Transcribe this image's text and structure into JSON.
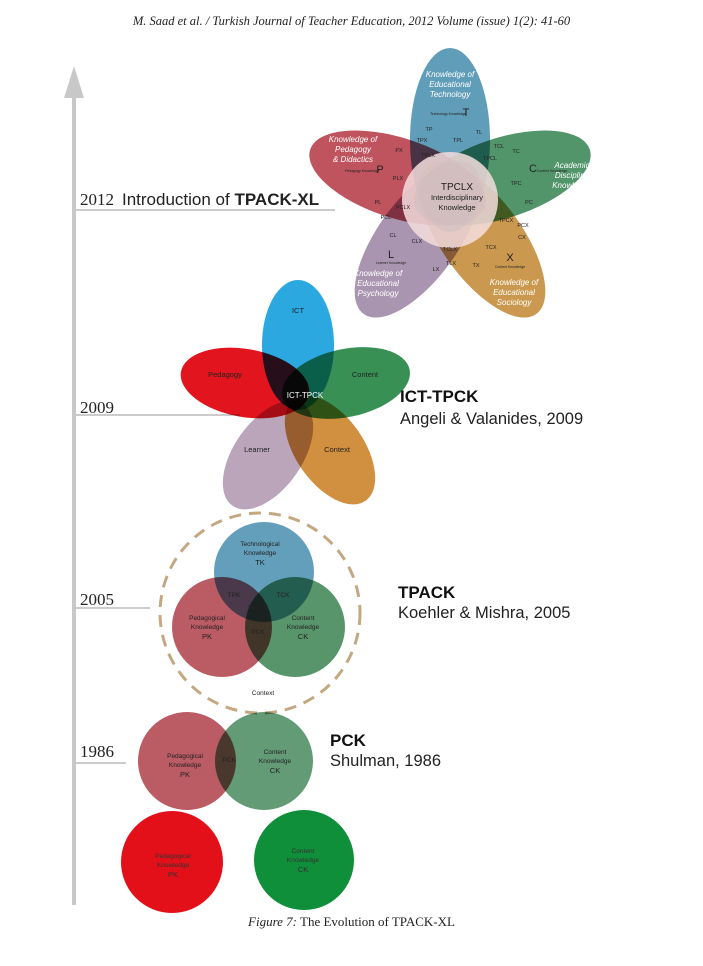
{
  "header": "M. Saad et al.  / Turkish Journal of Teacher Education, 2012 Volume (issue) 1(2): 41-60",
  "caption": {
    "label": "Figure 7:",
    "text": " The Evolution of TPACK-XL"
  },
  "timeline": {
    "y2012": {
      "year": "2012",
      "title_prefix": "Introduction of ",
      "title_bold": "TPACK-XL"
    },
    "y2009": {
      "year": "2009",
      "title": "ICT-TPCK",
      "citation": "Angeli & Valanides, 2009"
    },
    "y2005": {
      "year": "2005",
      "title": "TPACK",
      "citation": "Koehler & Mishra, 2005"
    },
    "y1986": {
      "year": "1986",
      "title": "PCK",
      "citation": "Shulman, 1986"
    }
  },
  "tpackxl": {
    "petals": {
      "t": [
        "Knowledge of",
        "Educational",
        "Technology"
      ],
      "p": [
        "Knowledge of",
        "Pedagogy",
        "& Didactics"
      ],
      "c": [
        "Academic",
        "Discipline",
        "Knowledge"
      ],
      "l": [
        "Knowledge of",
        "Educational",
        "Psychology"
      ],
      "x": [
        "Knowledge of",
        "Educational",
        "Sociology"
      ]
    },
    "letters": {
      "t": "T",
      "t_sub": "Technology Knowledge",
      "p": "P",
      "p_sub": "Pedagogy Knowledge",
      "c": "C",
      "c_sub": "Content Knowledge",
      "l": "L",
      "l_sub": "Learner Knowledge",
      "x": "X",
      "x_sub": "Context Knowledge"
    },
    "center": {
      "title": "TPCLX",
      "line1": "Interdisciplinary",
      "line2": "Knowledge"
    },
    "regions": [
      "TP",
      "TL",
      "TPX",
      "TPL",
      "TCL",
      "TC",
      "PX",
      "TPLX",
      "TPCL",
      "PLX",
      "TPC",
      "PL",
      "PCLX",
      "PC",
      "PCL",
      "TPCX",
      "PCX",
      "CL",
      "CLX",
      "TCLX",
      "TCX",
      "CX",
      "LX",
      "TLX",
      "TX"
    ]
  },
  "icttpck": {
    "top": "ICT",
    "left": "Pedagogy",
    "right": "Content",
    "bottom_left": "Learner",
    "bottom_right": "Context",
    "center": "ICT-TPCK"
  },
  "tpack": {
    "tk": [
      "Technological",
      "Knowledge",
      "TK"
    ],
    "pk": [
      "Pedagogical",
      "Knowledge",
      "PK"
    ],
    "ck": [
      "Content",
      "Knowledge",
      "CK"
    ],
    "tpk": "TPK",
    "tck": "TCK",
    "pck": "PCK",
    "center": "TPACK",
    "context": "Context"
  },
  "pck": {
    "pk": [
      "Pedagogical",
      "Knowledge",
      "PK"
    ],
    "ck": [
      "Content",
      "Knowledge",
      "CK"
    ],
    "overlap": "PCK"
  },
  "base": {
    "pk": [
      "Pedagogical",
      "Knowledge",
      "PK"
    ],
    "ck": [
      "Content",
      "Knowledge",
      "CK"
    ]
  }
}
